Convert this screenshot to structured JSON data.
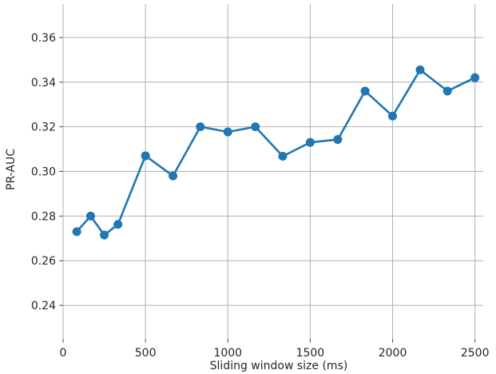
{
  "chart_data": {
    "type": "line",
    "title": "",
    "xlabel": "Sliding window size (ms)",
    "ylabel": "PR-AUC",
    "xlim": [
      0,
      2550
    ],
    "ylim": [
      0.225,
      0.375
    ],
    "xticks": [
      0,
      500,
      1000,
      1500,
      2000,
      2500
    ],
    "yticks": [
      0.24,
      0.26,
      0.28,
      0.3,
      0.32,
      0.34,
      0.36
    ],
    "ytick_labels": [
      "0.24",
      "0.26",
      "0.28",
      "0.30",
      "0.32",
      "0.34",
      "0.36"
    ],
    "grid": true,
    "series": [
      {
        "color": "#1f77b4",
        "x": [
          83,
          167,
          250,
          333,
          500,
          667,
          833,
          1000,
          1167,
          1333,
          1500,
          1667,
          1833,
          2000,
          2167,
          2333,
          2500
        ],
        "y": [
          0.273,
          0.28,
          0.2715,
          0.2763,
          0.307,
          0.298,
          0.32,
          0.3177,
          0.32,
          0.3068,
          0.313,
          0.3143,
          0.336,
          0.3248,
          0.3455,
          0.336,
          0.342
        ]
      }
    ]
  }
}
